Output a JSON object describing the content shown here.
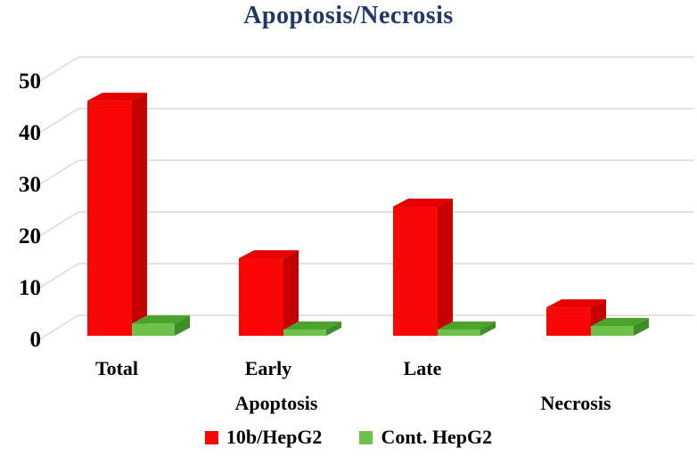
{
  "chart_data": {
    "type": "bar",
    "style": "3d-clustered-column",
    "title": "Apoptosis/Necrosis",
    "categories": [
      {
        "label": "Total",
        "group": "Apoptosis"
      },
      {
        "label": "Early",
        "group": "Apoptosis"
      },
      {
        "label": "Late",
        "group": "Apoptosis"
      },
      {
        "label": "",
        "group": "Necrosis"
      }
    ],
    "axis_group_labels": [
      "Apoptosis",
      "Necrosis"
    ],
    "series": [
      {
        "name": "10b/HepG2",
        "color_front": "#F90606",
        "color_top": "#E60000",
        "color_side": "#C40000",
        "values": [
          45.5,
          15,
          25,
          5.5
        ]
      },
      {
        "name": "Cont. HepG2",
        "color_front": "#6EC24B",
        "color_top": "#4CA32B",
        "color_side": "#3E8D26",
        "values": [
          2.4,
          1.2,
          1.2,
          1.9
        ]
      }
    ],
    "y_axis": {
      "min": 0,
      "max": 50,
      "ticks": [
        0,
        10,
        20,
        30,
        40,
        50
      ]
    },
    "grid": true,
    "legend_position": "bottom",
    "colors": {
      "title": "#1F3864",
      "text": "#000000",
      "gridline": "#D9D9D9",
      "background": "#FFFFFF"
    }
  }
}
